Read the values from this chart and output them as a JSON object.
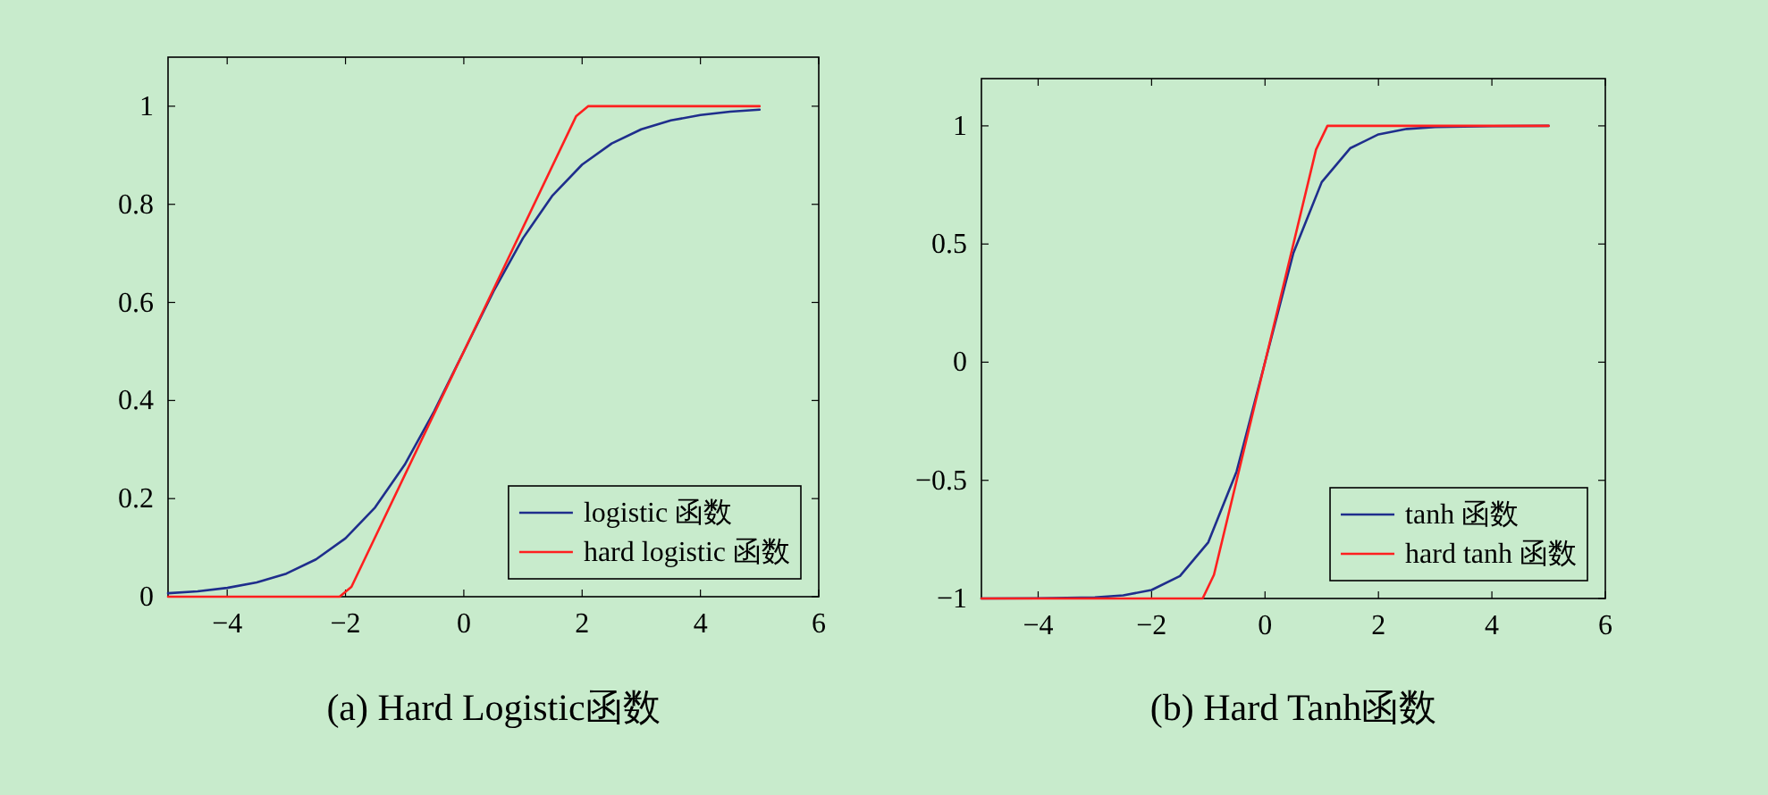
{
  "chart_data": [
    {
      "type": "line",
      "title": "(a) Hard Logistic函数",
      "xlim": [
        -5,
        6
      ],
      "ylim": [
        0,
        1.1
      ],
      "xticks": [
        -4,
        -2,
        0,
        2,
        4,
        6
      ],
      "yticks": [
        0,
        0.2,
        0.4,
        0.6,
        0.8,
        1
      ],
      "legend": "bottom right",
      "series": [
        {
          "name": "logistic 函数",
          "color": "#1f2e8c",
          "x": [
            -5,
            -4.5,
            -4,
            -3.5,
            -3,
            -2.5,
            -2,
            -1.5,
            -1,
            -0.5,
            0,
            0.5,
            1,
            1.5,
            2,
            2.5,
            3,
            3.5,
            4,
            4.5,
            5
          ],
          "values": [
            0.007,
            0.011,
            0.018,
            0.029,
            0.047,
            0.076,
            0.119,
            0.182,
            0.269,
            0.378,
            0.5,
            0.622,
            0.731,
            0.818,
            0.881,
            0.924,
            0.953,
            0.971,
            0.982,
            0.989,
            0.993
          ]
        },
        {
          "name": "hard logistic 函数",
          "color": "#ff1f1f",
          "x": [
            -5,
            -2.1,
            -1.9,
            0,
            1.9,
            2.1,
            5
          ],
          "values": [
            0,
            0,
            0.02,
            0.5,
            0.98,
            1,
            1
          ]
        }
      ]
    },
    {
      "type": "line",
      "title": "(b) Hard Tanh函数",
      "xlim": [
        -5,
        6
      ],
      "ylim": [
        -1,
        1.2
      ],
      "xticks": [
        -4,
        -2,
        0,
        2,
        4,
        6
      ],
      "yticks": [
        -1,
        -0.5,
        0,
        0.5,
        1
      ],
      "legend": "bottom right",
      "series": [
        {
          "name": "tanh 函数",
          "color": "#1f2e8c",
          "x": [
            -5,
            -4,
            -3,
            -2.5,
            -2,
            -1.5,
            -1,
            -0.5,
            0,
            0.5,
            1,
            1.5,
            2,
            2.5,
            3,
            4,
            5
          ],
          "values": [
            -1,
            -0.999,
            -0.995,
            -0.987,
            -0.964,
            -0.905,
            -0.762,
            -0.462,
            0,
            0.462,
            0.762,
            0.905,
            0.964,
            0.987,
            0.995,
            0.999,
            1
          ]
        },
        {
          "name": "hard tanh 函数",
          "color": "#ff1f1f",
          "x": [
            -5,
            -1.1,
            -0.9,
            0,
            0.9,
            1.1,
            5
          ],
          "values": [
            -1,
            -1,
            -0.9,
            0,
            0.9,
            1,
            1
          ]
        }
      ]
    }
  ]
}
